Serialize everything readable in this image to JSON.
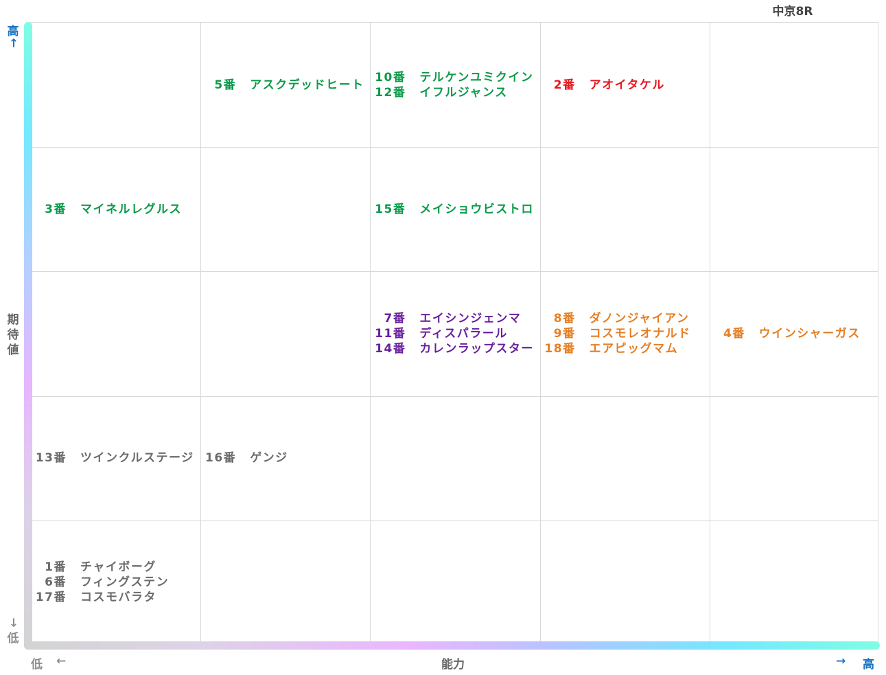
{
  "title": "中京8R",
  "colors": {
    "green": "#0b9a4a",
    "red": "#e8141c",
    "purple": "#6a1f9e",
    "orange": "#e67e22",
    "gray": "#6b6b6b",
    "axis_label_blue": "#1a73c0",
    "axis_label_gray": "#8c8c8c"
  },
  "chart_data": {
    "type": "table",
    "x_axis": {
      "label": "能力",
      "low": "低",
      "low_arrow": "←",
      "high": "高",
      "high_arrow": "→",
      "levels": 5
    },
    "y_axis": {
      "label": "期待値",
      "low": "低",
      "low_arrow": "→",
      "high": "高",
      "high_arrow": "←",
      "levels": 5
    },
    "cells": [
      {
        "col": 1,
        "row": 0,
        "color": "green",
        "entries": [
          {
            "num": "5番",
            "name": "アスクデッドヒート"
          }
        ]
      },
      {
        "col": 2,
        "row": 0,
        "color": "green",
        "entries": [
          {
            "num": "10番",
            "name": "テルケンユミクイン"
          },
          {
            "num": "12番",
            "name": "イフルジャンス"
          }
        ]
      },
      {
        "col": 3,
        "row": 0,
        "color": "red",
        "entries": [
          {
            "num": "2番",
            "name": "アオイタケル"
          }
        ]
      },
      {
        "col": 0,
        "row": 1,
        "color": "green",
        "entries": [
          {
            "num": "3番",
            "name": "マイネルレグルス"
          }
        ]
      },
      {
        "col": 2,
        "row": 1,
        "color": "green",
        "entries": [
          {
            "num": "15番",
            "name": "メイショウビストロ"
          }
        ]
      },
      {
        "col": 2,
        "row": 2,
        "color": "purple",
        "entries": [
          {
            "num": "7番",
            "name": "エイシンジェンマ"
          },
          {
            "num": "11番",
            "name": "ディスパラール"
          },
          {
            "num": "14番",
            "name": "カレンラップスター"
          }
        ]
      },
      {
        "col": 3,
        "row": 2,
        "color": "orange",
        "entries": [
          {
            "num": "8番",
            "name": "ダノンジャイアン"
          },
          {
            "num": "9番",
            "name": "コスモレオナルド"
          },
          {
            "num": "18番",
            "name": "エアピッグマム"
          }
        ]
      },
      {
        "col": 4,
        "row": 2,
        "color": "orange",
        "entries": [
          {
            "num": "4番",
            "name": "ウインシャーガス"
          }
        ]
      },
      {
        "col": 0,
        "row": 3,
        "color": "gray",
        "entries": [
          {
            "num": "13番",
            "name": "ツインクルステージ"
          }
        ]
      },
      {
        "col": 1,
        "row": 3,
        "color": "gray",
        "entries": [
          {
            "num": "16番",
            "name": "ゲンジ"
          }
        ]
      },
      {
        "col": 0,
        "row": 4,
        "color": "gray",
        "entries": [
          {
            "num": "1番",
            "name": "チャイボーグ"
          },
          {
            "num": "6番",
            "name": "フィングステン"
          },
          {
            "num": "17番",
            "name": "コスモバラタ"
          }
        ]
      }
    ]
  }
}
